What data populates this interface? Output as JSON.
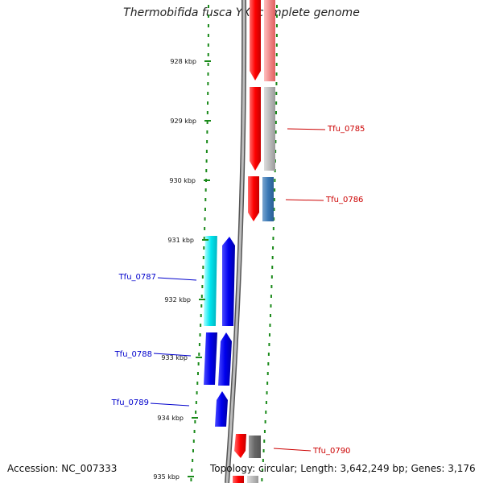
{
  "title": "Thermobifida fusca YX, complete genome",
  "footer": {
    "accession": "Accession: NC_007333",
    "topology": "Topology: circular; Length: 3,642,249 bp; Genes: 3,176"
  },
  "ruler_ticks": [
    "928 kbp",
    "929 kbp",
    "930 kbp",
    "931 kbp",
    "932 kbp",
    "933 kbp",
    "934 kbp",
    "935 kbp"
  ],
  "gene_labels": [
    {
      "name": "Tfu_0785",
      "strand": "forward",
      "color": "#cc0000"
    },
    {
      "name": "Tfu_0786",
      "strand": "forward",
      "color": "#cc0000"
    },
    {
      "name": "Tfu_0787",
      "strand": "reverse",
      "color": "#0000cc"
    },
    {
      "name": "Tfu_0788",
      "strand": "reverse",
      "color": "#0000cc"
    },
    {
      "name": "Tfu_0789",
      "strand": "reverse",
      "color": "#0000cc"
    },
    {
      "name": "Tfu_0790",
      "strand": "forward",
      "color": "#cc0000"
    }
  ],
  "colors": {
    "forward_cds": "#ff0000",
    "reverse_cds": "#0000ee",
    "cyan_feature": "#00e5ee",
    "backbone": "#888888",
    "tick_green": "#1a8a1a"
  }
}
